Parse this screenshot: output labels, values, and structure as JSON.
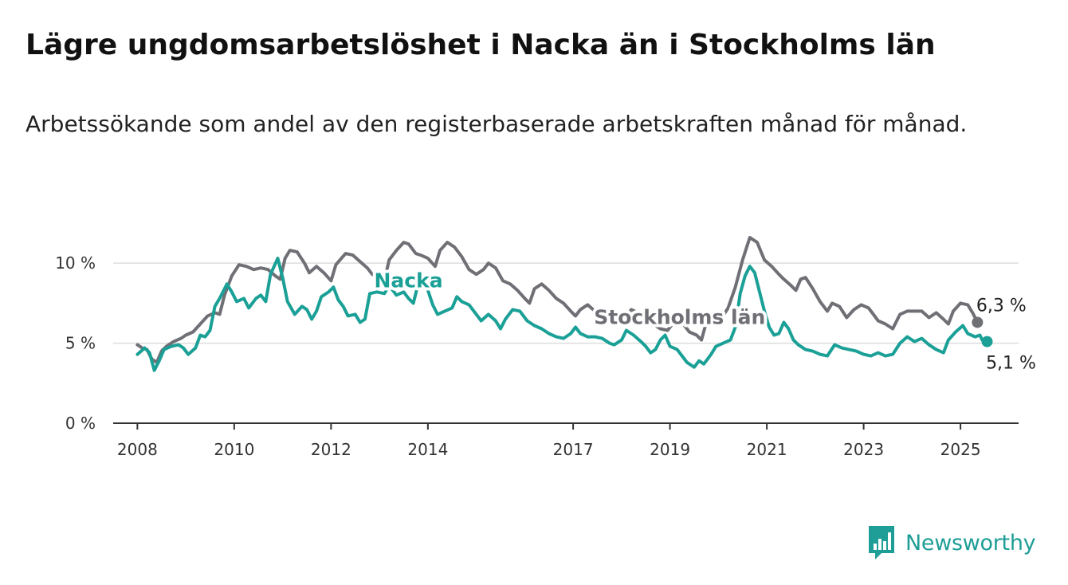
{
  "title": "Lägre ungdomsarbetslöshet i Nacka än i Stockholms län",
  "subtitle": "Arbetssökande som andel av den registerbaserade arbetskraften månad för månad.",
  "brand": {
    "name": "Newsworthy"
  },
  "colors": {
    "nacka": "#1aa096",
    "stockholm": "#6f6f76",
    "grid": "#dddddd",
    "axis": "#333333"
  },
  "chart_data": {
    "type": "line",
    "title": "Lägre ungdomsarbetslöshet i Nacka än i Stockholms län",
    "ylim": [
      0,
      12
    ],
    "xlim": [
      2007.5,
      2026.2
    ],
    "y_ticks": [
      {
        "value": 0,
        "label": "0 %"
      },
      {
        "value": 5,
        "label": "5 %"
      },
      {
        "value": 10,
        "label": "10 %"
      }
    ],
    "x_ticks": [
      {
        "value": 2008,
        "label": "2008"
      },
      {
        "value": 2010,
        "label": "2010"
      },
      {
        "value": 2012,
        "label": "2012"
      },
      {
        "value": 2014,
        "label": "2014"
      },
      {
        "value": 2017,
        "label": "2017"
      },
      {
        "value": 2019,
        "label": "2019"
      },
      {
        "value": 2021,
        "label": "2021"
      },
      {
        "value": 2023,
        "label": "2023"
      },
      {
        "value": 2025,
        "label": "2025"
      }
    ],
    "grid": true,
    "series": [
      {
        "name": "Stockholms län",
        "label": "Stockholms län",
        "end_label": "6,3 %",
        "points": [
          [
            2008.0,
            4.9
          ],
          [
            2008.1,
            4.7
          ],
          [
            2008.2,
            4.6
          ],
          [
            2008.3,
            4.0
          ],
          [
            2008.4,
            3.8
          ],
          [
            2008.5,
            4.5
          ],
          [
            2008.6,
            4.8
          ],
          [
            2008.75,
            5.1
          ],
          [
            2008.9,
            5.3
          ],
          [
            2009.0,
            5.5
          ],
          [
            2009.15,
            5.7
          ],
          [
            2009.3,
            6.2
          ],
          [
            2009.45,
            6.7
          ],
          [
            2009.6,
            6.9
          ],
          [
            2009.7,
            6.8
          ],
          [
            2009.8,
            8.0
          ],
          [
            2009.95,
            9.2
          ],
          [
            2010.1,
            9.9
          ],
          [
            2010.25,
            9.8
          ],
          [
            2010.4,
            9.6
          ],
          [
            2010.55,
            9.7
          ],
          [
            2010.7,
            9.6
          ],
          [
            2010.85,
            9.2
          ],
          [
            2010.95,
            9.0
          ],
          [
            2011.05,
            10.3
          ],
          [
            2011.15,
            10.8
          ],
          [
            2011.3,
            10.7
          ],
          [
            2011.45,
            10.0
          ],
          [
            2011.55,
            9.4
          ],
          [
            2011.7,
            9.8
          ],
          [
            2011.85,
            9.4
          ],
          [
            2012.0,
            8.9
          ],
          [
            2012.1,
            9.9
          ],
          [
            2012.3,
            10.6
          ],
          [
            2012.45,
            10.5
          ],
          [
            2012.6,
            10.1
          ],
          [
            2012.75,
            9.7
          ],
          [
            2012.85,
            9.3
          ],
          [
            2013.0,
            9.1
          ],
          [
            2013.1,
            8.9
          ],
          [
            2013.2,
            10.2
          ],
          [
            2013.35,
            10.8
          ],
          [
            2013.5,
            11.3
          ],
          [
            2013.6,
            11.2
          ],
          [
            2013.75,
            10.6
          ],
          [
            2013.85,
            10.5
          ],
          [
            2014.0,
            10.3
          ],
          [
            2014.15,
            9.8
          ],
          [
            2014.25,
            10.8
          ],
          [
            2014.4,
            11.3
          ],
          [
            2014.55,
            11.0
          ],
          [
            2014.7,
            10.4
          ],
          [
            2014.85,
            9.6
          ],
          [
            2015.0,
            9.3
          ],
          [
            2015.15,
            9.6
          ],
          [
            2015.25,
            10.0
          ],
          [
            2015.4,
            9.7
          ],
          [
            2015.55,
            8.9
          ],
          [
            2015.7,
            8.7
          ],
          [
            2015.85,
            8.3
          ],
          [
            2016.0,
            7.8
          ],
          [
            2016.1,
            7.5
          ],
          [
            2016.2,
            8.4
          ],
          [
            2016.35,
            8.7
          ],
          [
            2016.5,
            8.3
          ],
          [
            2016.65,
            7.8
          ],
          [
            2016.8,
            7.5
          ],
          [
            2016.95,
            7.0
          ],
          [
            2017.05,
            6.7
          ],
          [
            2017.15,
            7.1
          ],
          [
            2017.3,
            7.4
          ],
          [
            2017.45,
            7.0
          ],
          [
            2017.6,
            6.8
          ],
          [
            2017.75,
            6.6
          ],
          [
            2017.9,
            6.2
          ],
          [
            2018.05,
            6.3
          ],
          [
            2018.2,
            7.1
          ],
          [
            2018.35,
            6.9
          ],
          [
            2018.5,
            6.5
          ],
          [
            2018.65,
            6.2
          ],
          [
            2018.8,
            5.9
          ],
          [
            2018.95,
            5.8
          ],
          [
            2019.1,
            6.4
          ],
          [
            2019.25,
            6.3
          ],
          [
            2019.4,
            5.7
          ],
          [
            2019.55,
            5.5
          ],
          [
            2019.65,
            5.2
          ],
          [
            2019.75,
            6.3
          ],
          [
            2019.9,
            6.2
          ],
          [
            2020.05,
            6.5
          ],
          [
            2020.2,
            7.2
          ],
          [
            2020.35,
            8.5
          ],
          [
            2020.5,
            10.2
          ],
          [
            2020.65,
            11.6
          ],
          [
            2020.8,
            11.3
          ],
          [
            2020.95,
            10.2
          ],
          [
            2021.1,
            9.8
          ],
          [
            2021.25,
            9.3
          ],
          [
            2021.35,
            9.0
          ],
          [
            2021.5,
            8.6
          ],
          [
            2021.6,
            8.3
          ],
          [
            2021.7,
            9.0
          ],
          [
            2021.8,
            9.1
          ],
          [
            2021.95,
            8.4
          ],
          [
            2022.1,
            7.6
          ],
          [
            2022.25,
            7.0
          ],
          [
            2022.35,
            7.5
          ],
          [
            2022.5,
            7.3
          ],
          [
            2022.65,
            6.6
          ],
          [
            2022.8,
            7.1
          ],
          [
            2022.95,
            7.4
          ],
          [
            2023.1,
            7.2
          ],
          [
            2023.2,
            6.8
          ],
          [
            2023.3,
            6.4
          ],
          [
            2023.45,
            6.2
          ],
          [
            2023.6,
            5.9
          ],
          [
            2023.75,
            6.8
          ],
          [
            2023.9,
            7.0
          ],
          [
            2024.05,
            7.0
          ],
          [
            2024.2,
            7.0
          ],
          [
            2024.35,
            6.6
          ],
          [
            2024.5,
            6.9
          ],
          [
            2024.65,
            6.5
          ],
          [
            2024.75,
            6.2
          ],
          [
            2024.85,
            7.0
          ],
          [
            2025.0,
            7.5
          ],
          [
            2025.15,
            7.4
          ],
          [
            2025.25,
            6.9
          ],
          [
            2025.35,
            6.3
          ]
        ]
      },
      {
        "name": "Nacka",
        "label": "Nacka",
        "end_label": "5,1 %",
        "points": [
          [
            2008.0,
            4.3
          ],
          [
            2008.15,
            4.7
          ],
          [
            2008.25,
            4.4
          ],
          [
            2008.35,
            3.3
          ],
          [
            2008.45,
            3.9
          ],
          [
            2008.55,
            4.6
          ],
          [
            2008.7,
            4.8
          ],
          [
            2008.85,
            4.9
          ],
          [
            2008.95,
            4.7
          ],
          [
            2009.05,
            4.3
          ],
          [
            2009.2,
            4.7
          ],
          [
            2009.3,
            5.5
          ],
          [
            2009.4,
            5.4
          ],
          [
            2009.5,
            5.8
          ],
          [
            2009.6,
            7.3
          ],
          [
            2009.7,
            7.8
          ],
          [
            2009.85,
            8.7
          ],
          [
            2009.95,
            8.2
          ],
          [
            2010.05,
            7.6
          ],
          [
            2010.2,
            7.8
          ],
          [
            2010.3,
            7.2
          ],
          [
            2010.45,
            7.8
          ],
          [
            2010.55,
            8.0
          ],
          [
            2010.65,
            7.6
          ],
          [
            2010.75,
            9.3
          ],
          [
            2010.9,
            10.3
          ],
          [
            2011.0,
            9.1
          ],
          [
            2011.1,
            7.6
          ],
          [
            2011.25,
            6.8
          ],
          [
            2011.4,
            7.3
          ],
          [
            2011.5,
            7.1
          ],
          [
            2011.6,
            6.5
          ],
          [
            2011.7,
            7.0
          ],
          [
            2011.8,
            7.9
          ],
          [
            2011.95,
            8.2
          ],
          [
            2012.05,
            8.5
          ],
          [
            2012.15,
            7.7
          ],
          [
            2012.25,
            7.3
          ],
          [
            2012.35,
            6.7
          ],
          [
            2012.5,
            6.8
          ],
          [
            2012.6,
            6.3
          ],
          [
            2012.7,
            6.5
          ],
          [
            2012.8,
            8.1
          ],
          [
            2012.95,
            8.2
          ],
          [
            2013.1,
            8.1
          ],
          [
            2013.2,
            8.6
          ],
          [
            2013.35,
            8.0
          ],
          [
            2013.5,
            8.2
          ],
          [
            2013.6,
            7.8
          ],
          [
            2013.7,
            7.5
          ],
          [
            2013.8,
            8.7
          ],
          [
            2013.9,
            9.1
          ],
          [
            2014.0,
            8.3
          ],
          [
            2014.1,
            7.4
          ],
          [
            2014.2,
            6.8
          ],
          [
            2014.35,
            7.0
          ],
          [
            2014.5,
            7.2
          ],
          [
            2014.6,
            7.9
          ],
          [
            2014.7,
            7.6
          ],
          [
            2014.85,
            7.4
          ],
          [
            2015.0,
            6.8
          ],
          [
            2015.1,
            6.4
          ],
          [
            2015.25,
            6.8
          ],
          [
            2015.4,
            6.4
          ],
          [
            2015.5,
            5.9
          ],
          [
            2015.6,
            6.5
          ],
          [
            2015.75,
            7.1
          ],
          [
            2015.9,
            7.0
          ],
          [
            2016.05,
            6.4
          ],
          [
            2016.2,
            6.1
          ],
          [
            2016.35,
            5.9
          ],
          [
            2016.5,
            5.6
          ],
          [
            2016.65,
            5.4
          ],
          [
            2016.8,
            5.3
          ],
          [
            2016.95,
            5.6
          ],
          [
            2017.05,
            6.0
          ],
          [
            2017.15,
            5.6
          ],
          [
            2017.3,
            5.4
          ],
          [
            2017.45,
            5.4
          ],
          [
            2017.6,
            5.3
          ],
          [
            2017.75,
            5.0
          ],
          [
            2017.85,
            4.9
          ],
          [
            2018.0,
            5.2
          ],
          [
            2018.1,
            5.8
          ],
          [
            2018.25,
            5.5
          ],
          [
            2018.4,
            5.1
          ],
          [
            2018.5,
            4.8
          ],
          [
            2018.6,
            4.4
          ],
          [
            2018.7,
            4.6
          ],
          [
            2018.8,
            5.2
          ],
          [
            2018.9,
            5.5
          ],
          [
            2019.0,
            4.8
          ],
          [
            2019.15,
            4.6
          ],
          [
            2019.25,
            4.2
          ],
          [
            2019.35,
            3.8
          ],
          [
            2019.5,
            3.5
          ],
          [
            2019.6,
            3.9
          ],
          [
            2019.7,
            3.7
          ],
          [
            2019.85,
            4.3
          ],
          [
            2019.95,
            4.8
          ],
          [
            2020.1,
            5.0
          ],
          [
            2020.25,
            5.2
          ],
          [
            2020.35,
            6.0
          ],
          [
            2020.45,
            8.1
          ],
          [
            2020.55,
            9.2
          ],
          [
            2020.65,
            9.8
          ],
          [
            2020.75,
            9.4
          ],
          [
            2020.85,
            8.2
          ],
          [
            2020.95,
            7.0
          ],
          [
            2021.05,
            6.0
          ],
          [
            2021.15,
            5.5
          ],
          [
            2021.25,
            5.6
          ],
          [
            2021.35,
            6.3
          ],
          [
            2021.45,
            5.9
          ],
          [
            2021.55,
            5.2
          ],
          [
            2021.65,
            4.9
          ],
          [
            2021.8,
            4.6
          ],
          [
            2021.95,
            4.5
          ],
          [
            2022.1,
            4.3
          ],
          [
            2022.25,
            4.2
          ],
          [
            2022.4,
            4.9
          ],
          [
            2022.55,
            4.7
          ],
          [
            2022.7,
            4.6
          ],
          [
            2022.85,
            4.5
          ],
          [
            2023.0,
            4.3
          ],
          [
            2023.15,
            4.2
          ],
          [
            2023.3,
            4.4
          ],
          [
            2023.45,
            4.2
          ],
          [
            2023.6,
            4.3
          ],
          [
            2023.75,
            5.0
          ],
          [
            2023.9,
            5.4
          ],
          [
            2024.05,
            5.1
          ],
          [
            2024.2,
            5.3
          ],
          [
            2024.35,
            4.9
          ],
          [
            2024.5,
            4.6
          ],
          [
            2024.65,
            4.4
          ],
          [
            2024.75,
            5.2
          ],
          [
            2024.9,
            5.7
          ],
          [
            2025.05,
            6.1
          ],
          [
            2025.15,
            5.6
          ],
          [
            2025.3,
            5.4
          ],
          [
            2025.4,
            5.5
          ],
          [
            2025.45,
            5.2
          ],
          [
            2025.55,
            5.1
          ]
        ]
      }
    ]
  }
}
